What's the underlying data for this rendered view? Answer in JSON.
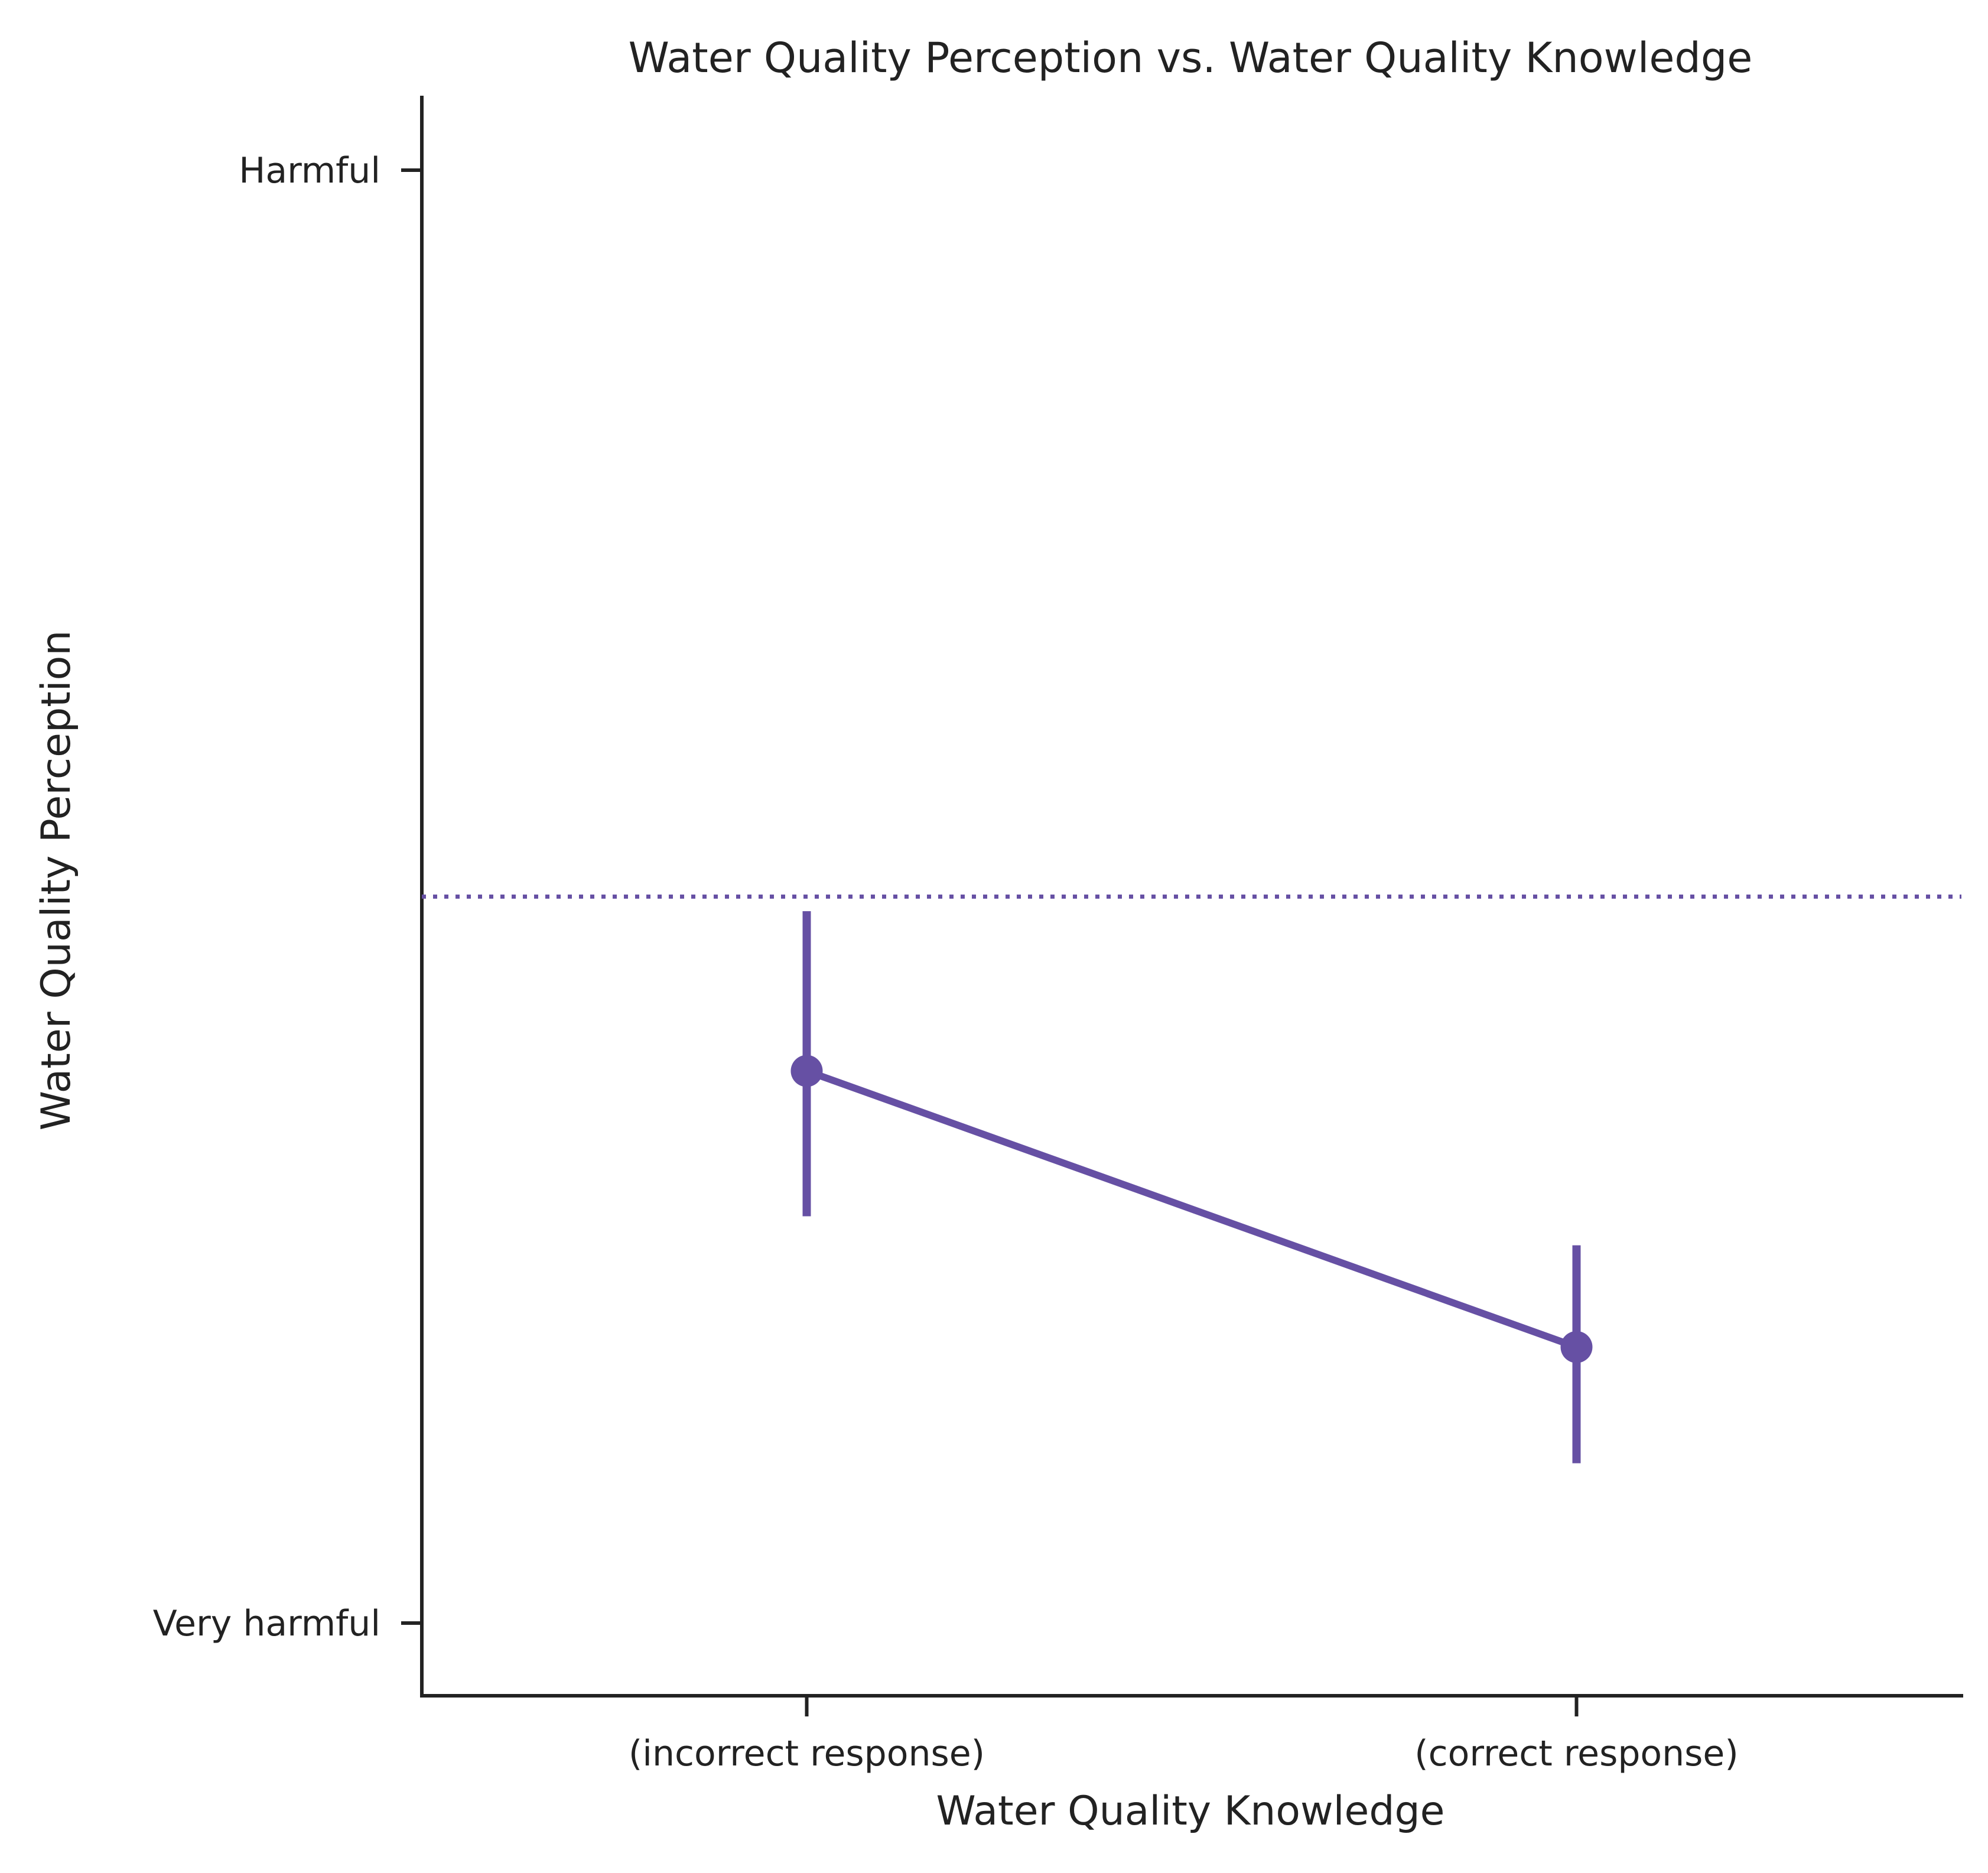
{
  "chart_data": {
    "type": "line",
    "title": "Water Quality Perception vs. Water Quality Knowledge",
    "xlabel": "Water Quality Knowledge",
    "ylabel": "Water Quality Perception",
    "categories": [
      "(incorrect response)",
      "(correct response)"
    ],
    "y_ticks": [
      {
        "value": 1,
        "label": "Very harmful"
      },
      {
        "value": 2,
        "label": "Harmful"
      }
    ],
    "ylim": [
      0.95,
      2.05
    ],
    "series": [
      {
        "values": [
          1.38,
          1.19
        ],
        "ci_low": [
          1.28,
          1.11
        ],
        "ci_high": [
          1.49,
          1.26
        ]
      }
    ],
    "reference_line": {
      "value": 1.5,
      "style": "dotted"
    },
    "grid": false,
    "colors": {
      "series": "#6650a4",
      "axis": "#222222"
    }
  }
}
